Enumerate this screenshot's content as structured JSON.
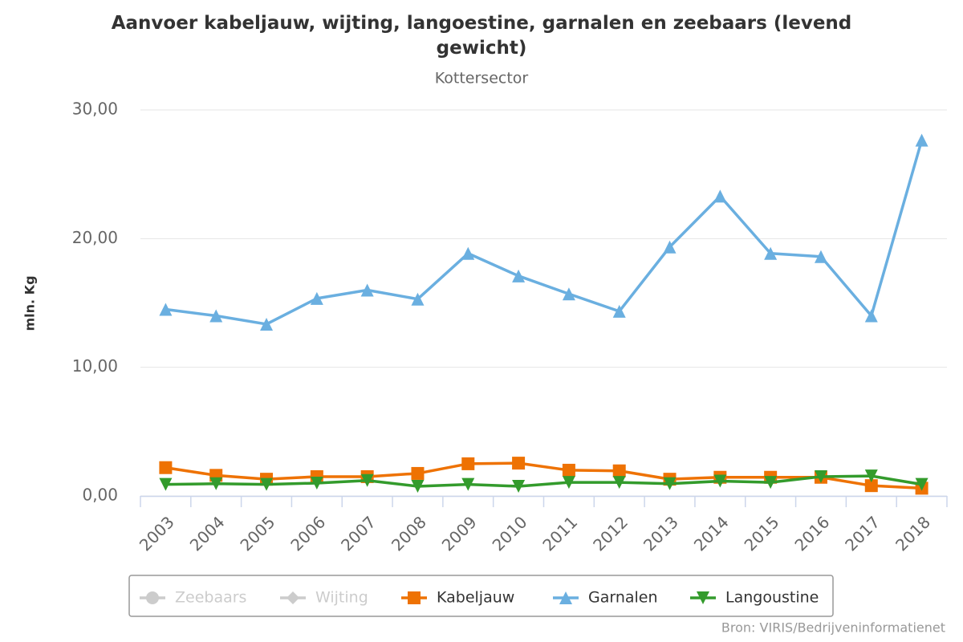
{
  "chart_data": {
    "type": "line",
    "title": "Aanvoer kabeljauw, wijting, langoestine, garnalen en zeebaars (levend gewicht)",
    "subtitle": "Kottersector",
    "y_label": "mln. Kg",
    "source": "Bron: VIRIS/Bedrijveninformatienet",
    "categories": [
      "2003",
      "2004",
      "2005",
      "2006",
      "2007",
      "2008",
      "2009",
      "2010",
      "2011",
      "2012",
      "2013",
      "2014",
      "2015",
      "2016",
      "2017",
      "2018"
    ],
    "ylim": [
      0,
      30
    ],
    "yticks": [
      {
        "value": 0,
        "label": "0,00"
      },
      {
        "value": 10,
        "label": "10,00"
      },
      {
        "value": 20,
        "label": "20,00"
      },
      {
        "value": 30,
        "label": "30,00"
      }
    ],
    "grid": true,
    "legend": "bottom",
    "series": [
      {
        "name": "Zeebaars",
        "color": "#cccccc",
        "marker": "circle",
        "visible": false
      },
      {
        "name": "Wijting",
        "color": "#cccccc",
        "marker": "diamond",
        "visible": false
      },
      {
        "name": "Kabeljauw",
        "color": "#ee7203",
        "marker": "square",
        "visible": true,
        "values": [
          2.2,
          1.6,
          1.3,
          1.5,
          1.5,
          1.75,
          2.5,
          2.55,
          2.0,
          1.95,
          1.3,
          1.45,
          1.45,
          1.45,
          0.8,
          0.6
        ]
      },
      {
        "name": "Garnalen",
        "color": "#6aafe0",
        "marker": "triangle",
        "visible": true,
        "values": [
          14.5,
          14.0,
          13.35,
          15.35,
          16.0,
          15.3,
          18.85,
          17.1,
          15.7,
          14.35,
          19.35,
          23.3,
          18.85,
          18.6,
          14.0,
          27.65
        ]
      },
      {
        "name": "Langoustine",
        "color": "#339b2c",
        "marker": "triangle-down",
        "visible": true,
        "values": [
          0.9,
          0.95,
          0.9,
          1.0,
          1.2,
          0.75,
          0.9,
          0.75,
          1.05,
          1.05,
          0.95,
          1.15,
          1.05,
          1.5,
          1.55,
          0.9
        ]
      }
    ]
  }
}
